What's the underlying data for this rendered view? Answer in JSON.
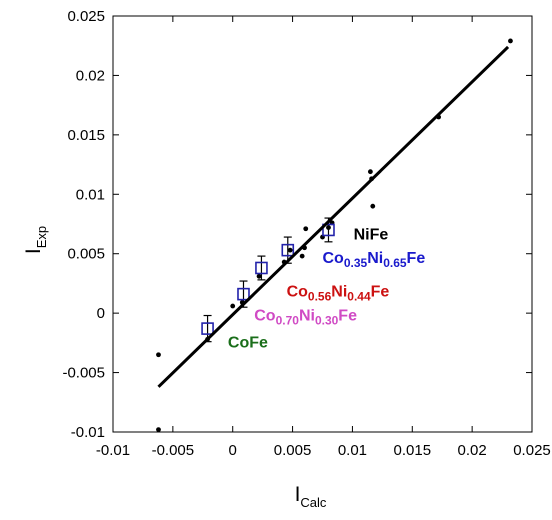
{
  "chart_data": {
    "type": "scatter",
    "title": "",
    "xlabel": {
      "main": "I",
      "sub": "Calc"
    },
    "ylabel": {
      "main": "I",
      "sub": "Exp"
    },
    "xlim": [
      -0.01,
      0.025
    ],
    "ylim": [
      -0.01,
      0.025
    ],
    "xticks": [
      -0.01,
      -0.005,
      0,
      0.005,
      0.01,
      0.015,
      0.02,
      0.025
    ],
    "xtick_labels": [
      "-0.01",
      "-0.005",
      "0",
      "0.005",
      "0.01",
      "0.015",
      "0.02",
      "0.025"
    ],
    "yticks": [
      -0.01,
      -0.005,
      0,
      0.005,
      0.01,
      0.015,
      0.02,
      0.025
    ],
    "ytick_labels": [
      "-0.01",
      "-0.005",
      "0",
      "0.005",
      "0.01",
      "0.015",
      "0.02",
      "0.025"
    ],
    "grid": false,
    "series": [
      {
        "marker": "dot",
        "color": "#000000",
        "points": [
          [
            -0.0062,
            -0.0035
          ],
          [
            -0.0062,
            -0.0098
          ],
          [
            -0.0021,
            -0.0022
          ],
          [
            0.0,
            0.0006
          ],
          [
            0.0008,
            0.0009
          ],
          [
            0.0022,
            0.0031
          ],
          [
            0.0043,
            0.0043
          ],
          [
            0.0048,
            0.0053
          ],
          [
            0.0058,
            0.0048
          ],
          [
            0.006,
            0.0055
          ],
          [
            0.0061,
            0.0071
          ],
          [
            0.0075,
            0.0064
          ],
          [
            0.008,
            0.0072
          ],
          [
            0.0083,
            0.0076
          ],
          [
            0.0115,
            0.0119
          ],
          [
            0.0116,
            0.0113
          ],
          [
            0.0117,
            0.009
          ],
          [
            0.0172,
            0.0165
          ],
          [
            0.0232,
            0.0229
          ]
        ]
      },
      {
        "marker": "open-square",
        "color": "#2222aa",
        "points": [
          [
            -0.0021,
            -0.0013
          ],
          [
            0.0009,
            0.0016
          ],
          [
            0.0024,
            0.0038
          ],
          [
            0.0046,
            0.0053
          ],
          [
            0.008,
            0.007
          ]
        ],
        "error": [
          0.0011,
          0.0011,
          0.001,
          0.0011,
          0.001
        ]
      },
      {
        "type": "line",
        "color": "#000000",
        "points": [
          [
            -0.0062,
            -0.0062
          ],
          [
            0.023,
            0.0224
          ]
        ]
      }
    ],
    "annotations": [
      {
        "x": 0.0101,
        "y": 0.0062,
        "anchor": "start",
        "color": "#000000",
        "parts": [
          {
            "t": "NiFe"
          }
        ]
      },
      {
        "x": 0.0075,
        "y": 0.0042,
        "anchor": "start",
        "color": "#1a1acc",
        "parts": [
          {
            "t": "Co"
          },
          {
            "t": "0.35",
            "s": true
          },
          {
            "t": "Ni"
          },
          {
            "t": "0.65",
            "s": true
          },
          {
            "t": "Fe"
          }
        ]
      },
      {
        "x": 0.0045,
        "y": 0.0014,
        "anchor": "start",
        "color": "#cc1111",
        "parts": [
          {
            "t": "Co"
          },
          {
            "t": "0.56",
            "s": true
          },
          {
            "t": "Ni"
          },
          {
            "t": "0.44",
            "s": true
          },
          {
            "t": "Fe"
          }
        ]
      },
      {
        "x": 0.0018,
        "y": -0.0006,
        "anchor": "start",
        "color": "#d04ac4",
        "parts": [
          {
            "t": "Co"
          },
          {
            "t": "0.70",
            "s": true
          },
          {
            "t": "Ni"
          },
          {
            "t": "0.30",
            "s": true
          },
          {
            "t": "Fe"
          }
        ]
      },
      {
        "x": -0.0004,
        "y": -0.0029,
        "anchor": "start",
        "color": "#1a6e1a",
        "parts": [
          {
            "t": "CoFe"
          }
        ]
      }
    ]
  }
}
